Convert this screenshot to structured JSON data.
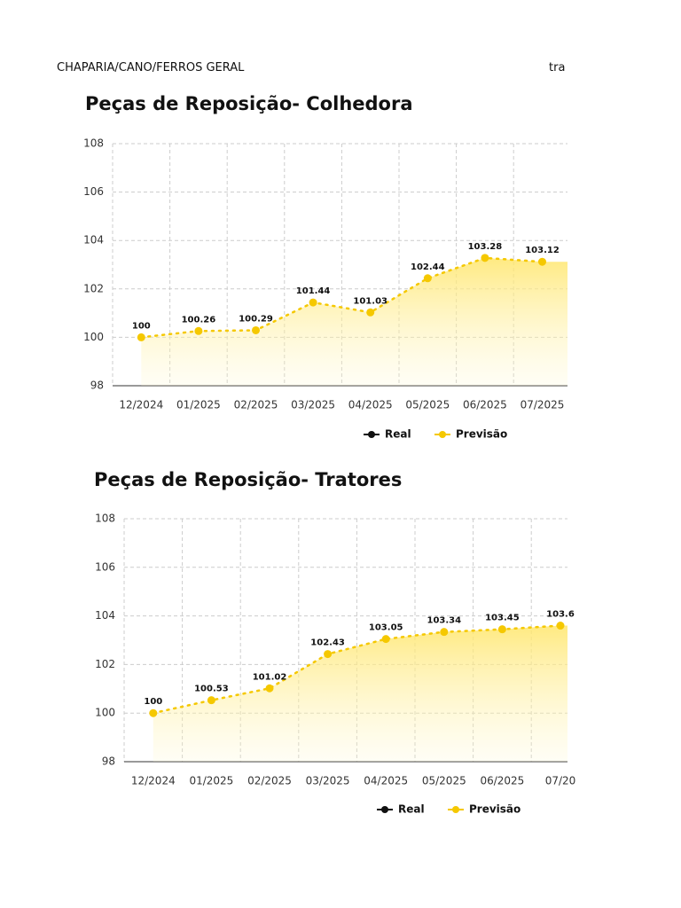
{
  "header": {
    "left": "CHAPARIA/CANO/FERROS GERAL",
    "right": "tra"
  },
  "chart_data": [
    {
      "type": "line",
      "title": "Peças de Reposição- Colhedora",
      "categories": [
        "12/2024",
        "01/2025",
        "02/2025",
        "03/2025",
        "04/2025",
        "05/2025",
        "06/2025",
        "07/2025"
      ],
      "series": [
        {
          "name": "Real",
          "color": "#111111",
          "values": [
            null,
            null,
            null,
            null,
            null,
            null,
            null,
            null
          ]
        },
        {
          "name": "Previsão",
          "color": "#f5c800",
          "values": [
            100,
            100.26,
            100.29,
            101.44,
            101.03,
            102.44,
            103.28,
            103.12
          ]
        }
      ],
      "ylim": [
        98,
        108
      ],
      "yticks": [
        98,
        100,
        102,
        104,
        106,
        108
      ],
      "grid": true
    },
    {
      "type": "line",
      "title": "Peças de Reposição- Tratores",
      "categories": [
        "12/2024",
        "01/2025",
        "02/2025",
        "03/2025",
        "04/2025",
        "05/2025",
        "06/2025",
        "07/20"
      ],
      "series": [
        {
          "name": "Real",
          "color": "#111111",
          "values": [
            null,
            null,
            null,
            null,
            null,
            null,
            null,
            null
          ]
        },
        {
          "name": "Previsão",
          "color": "#f5c800",
          "values": [
            100,
            100.53,
            101.02,
            102.43,
            103.05,
            103.34,
            103.45,
            103.6
          ]
        }
      ],
      "ylim": [
        98,
        108
      ],
      "yticks": [
        98,
        100,
        102,
        104,
        106,
        108
      ],
      "grid": true
    }
  ]
}
